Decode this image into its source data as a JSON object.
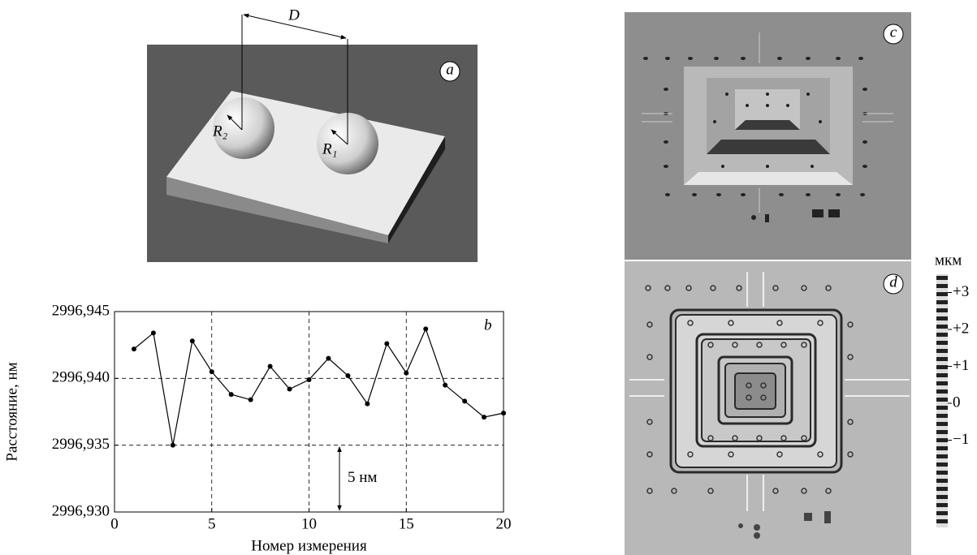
{
  "panel_a": {
    "label": "a",
    "distance": "D",
    "radius_2": "R₂",
    "radius_1": "R₁"
  },
  "panel_c": {
    "label": "c"
  },
  "panel_d": {
    "label": "d",
    "scale_unit": "мкм",
    "scale_ticks": [
      {
        "value": 3,
        "label": "+3"
      },
      {
        "value": 2,
        "label": "+2"
      },
      {
        "value": 1,
        "label": "+1"
      },
      0,
      {
        "value": -1,
        "label": "−1"
      }
    ]
  },
  "chart_data": {
    "type": "line",
    "panel_label": "b",
    "x_label": "Номер измерения",
    "y_label": "Расстояние, нм",
    "annotation": "5 нм",
    "x": [
      1,
      2,
      3,
      4,
      5,
      6,
      7,
      8,
      9,
      10,
      11,
      12,
      13,
      14,
      15,
      16,
      17,
      18,
      19,
      20
    ],
    "series": [
      {
        "color": "#000000",
        "values": [
          2996.9422,
          2996.9434,
          2996.935,
          2996.9428,
          2996.9405,
          2996.9388,
          2996.9384,
          2996.9409,
          2996.9392,
          2996.9399,
          2996.9415,
          2996.9402,
          2996.9381,
          2996.9426,
          2996.9404,
          2996.9437,
          2996.9395,
          2996.9383,
          2996.9371,
          2996.9374
        ]
      }
    ],
    "xlim": [
      0,
      20
    ],
    "xticks": [
      0,
      5,
      10,
      15,
      20
    ],
    "ylim": [
      2996.93,
      2996.945
    ],
    "yticks": [
      {
        "value": 2996.93,
        "label": "2996,930"
      },
      {
        "value": 2996.935,
        "label": "2996,935"
      },
      {
        "value": 2996.94,
        "label": "2996,940"
      },
      {
        "value": 2996.945,
        "label": "2996,945"
      }
    ],
    "grid": true
  }
}
